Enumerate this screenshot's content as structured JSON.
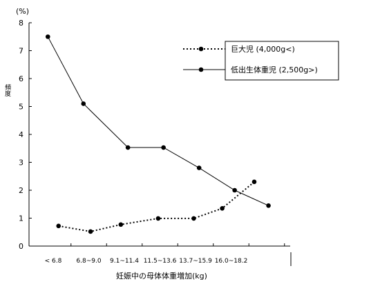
{
  "chart_data": {
    "type": "line",
    "title": "",
    "ylabel": "頻度",
    "yunit": "(%)",
    "xlabel": "妊娠中の母体体重増加(kg)",
    "ylim": [
      0,
      8
    ],
    "yticks": [
      "0",
      "1",
      "2",
      "3",
      "4",
      "5",
      "6",
      "7",
      "8"
    ],
    "categories": [
      "< 6.8",
      "6.8~9.0",
      "9.1~11.4",
      "11.5~13.6",
      "13.7~15.9",
      "16.0~18.2"
    ],
    "grid": false,
    "legend_position": "top-right",
    "series": [
      {
        "name": "巨大児 (4,000g<)",
        "style": "dotted",
        "x": [
          0.15,
          1.05,
          1.9,
          2.95,
          3.95,
          4.75,
          5.65
        ],
        "values": [
          0.72,
          0.52,
          0.77,
          0.99,
          0.99,
          1.35,
          2.3
        ]
      },
      {
        "name": "低出生体重児 (2,500g>)",
        "style": "solid",
        "x": [
          -0.15,
          0.85,
          2.1,
          3.1,
          4.1,
          5.1,
          6.05
        ],
        "values": [
          7.5,
          5.1,
          3.53,
          3.53,
          2.8,
          2.0,
          1.45
        ]
      }
    ],
    "colors": {
      "line": "#000000",
      "marker": "#000000",
      "background": "#ffffff"
    }
  }
}
